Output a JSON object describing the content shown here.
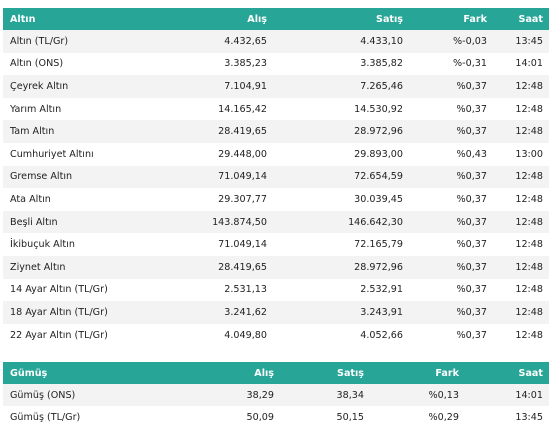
{
  "gold": {
    "headers": {
      "name": "Altın",
      "buy": "Alış",
      "sell": "Satış",
      "diff": "Fark",
      "time": "Saat"
    },
    "rows": [
      {
        "name": "Altın (TL/Gr)",
        "buy": "4.432,65",
        "sell": "4.433,10",
        "diff": "%-0,03",
        "time": "13:45"
      },
      {
        "name": "Altın (ONS)",
        "buy": "3.385,23",
        "sell": "3.385,82",
        "diff": "%-0,31",
        "time": "14:01"
      },
      {
        "name": "Çeyrek Altın",
        "buy": "7.104,91",
        "sell": "7.265,46",
        "diff": "%0,37",
        "time": "12:48"
      },
      {
        "name": "Yarım Altın",
        "buy": "14.165,42",
        "sell": "14.530,92",
        "diff": "%0,37",
        "time": "12:48"
      },
      {
        "name": "Tam Altın",
        "buy": "28.419,65",
        "sell": "28.972,96",
        "diff": "%0,37",
        "time": "12:48"
      },
      {
        "name": "Cumhuriyet Altını",
        "buy": "29.448,00",
        "sell": "29.893,00",
        "diff": "%0,43",
        "time": "13:00"
      },
      {
        "name": "Gremse Altın",
        "buy": "71.049,14",
        "sell": "72.654,59",
        "diff": "%0,37",
        "time": "12:48"
      },
      {
        "name": "Ata Altın",
        "buy": "29.307,77",
        "sell": "30.039,45",
        "diff": "%0,37",
        "time": "12:48"
      },
      {
        "name": "Beşli Altın",
        "buy": "143.874,50",
        "sell": "146.642,30",
        "diff": "%0,37",
        "time": "12:48"
      },
      {
        "name": "İkibuçuk Altın",
        "buy": "71.049,14",
        "sell": "72.165,79",
        "diff": "%0,37",
        "time": "12:48"
      },
      {
        "name": "Ziynet Altın",
        "buy": "28.419,65",
        "sell": "28.972,96",
        "diff": "%0,37",
        "time": "12:48"
      },
      {
        "name": "14 Ayar Altın (TL/Gr)",
        "buy": "2.531,13",
        "sell": "2.532,91",
        "diff": "%0,37",
        "time": "12:48"
      },
      {
        "name": "18 Ayar Altın (TL/Gr)",
        "buy": "3.241,62",
        "sell": "3.243,91",
        "diff": "%0,37",
        "time": "12:48"
      },
      {
        "name": "22 Ayar Altın (TL/Gr)",
        "buy": "4.049,80",
        "sell": "4.052,66",
        "diff": "%0,37",
        "time": "12:48"
      }
    ]
  },
  "silver": {
    "headers": {
      "name": "Gümüş",
      "buy": "Alış",
      "sell": "Satış",
      "diff": "Fark",
      "time": "Saat"
    },
    "rows": [
      {
        "name": "Gümüş (ONS)",
        "buy": "38,29",
        "sell": "38,34",
        "diff": "%0,13",
        "time": "14:01"
      },
      {
        "name": "Gümüş (TL/Gr)",
        "buy": "50,09",
        "sell": "50,15",
        "diff": "%0,29",
        "time": "13:45"
      }
    ]
  },
  "colors": {
    "header_bg": "#27a597",
    "header_text": "#ffffff",
    "row_alt": "#f3f3f3"
  }
}
